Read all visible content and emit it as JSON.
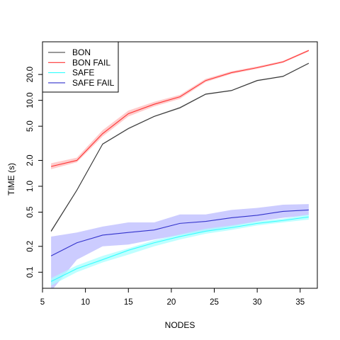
{
  "chart_data": {
    "type": "line",
    "xlabel": "NODES",
    "ylabel": "TIME (s)",
    "y_scale": "log",
    "xlim": [
      5,
      37
    ],
    "ylim": [
      0.065,
      48
    ],
    "x_ticks": [
      5,
      10,
      15,
      20,
      25,
      30,
      35
    ],
    "y_ticks": [
      0.1,
      0.2,
      0.5,
      1.0,
      2.0,
      5.0,
      10.0,
      20.0
    ],
    "y_tick_labels": [
      "0.1",
      "0.2",
      "0.5",
      "1.0",
      "2.0",
      "5.0",
      "10.0",
      "20.0"
    ],
    "x_tick_labels": [
      "5",
      "10",
      "15",
      "20",
      "25",
      "30",
      "35"
    ],
    "grid": false,
    "legend_position": "top-left",
    "x": [
      6,
      9,
      12,
      15,
      18,
      21,
      24,
      27,
      30,
      33,
      36
    ],
    "series": [
      {
        "name": "BON",
        "color": "#333333",
        "band_color": "#bbbbbb",
        "values": [
          0.3,
          0.9,
          3.1,
          4.7,
          6.5,
          8.2,
          11.8,
          13.0,
          17.0,
          19.0,
          27.0
        ],
        "lower": [
          0.29,
          0.88,
          3.05,
          4.6,
          6.4,
          8.0,
          11.6,
          12.8,
          16.7,
          18.7,
          26.5
        ],
        "upper": [
          0.31,
          0.92,
          3.15,
          4.8,
          6.6,
          8.4,
          12.0,
          13.2,
          17.3,
          19.3,
          27.5
        ]
      },
      {
        "name": "BON FAIL",
        "color": "#ff3333",
        "band_color": "#ffbbbb",
        "values": [
          1.7,
          2.0,
          4.1,
          7.0,
          9.0,
          11.0,
          17.0,
          21.0,
          24.0,
          28.0,
          38.0
        ],
        "lower": [
          1.58,
          1.9,
          3.8,
          6.5,
          8.5,
          10.4,
          16.3,
          20.3,
          23.3,
          27.3,
          37.0
        ],
        "upper": [
          1.85,
          2.15,
          4.5,
          7.6,
          9.6,
          11.6,
          17.8,
          21.8,
          24.8,
          28.8,
          39.0
        ]
      },
      {
        "name": "SAFE",
        "color": "#33ffff",
        "band_color": "#aaffff",
        "values": [
          0.078,
          0.11,
          0.14,
          0.18,
          0.22,
          0.26,
          0.3,
          0.33,
          0.37,
          0.4,
          0.44
        ],
        "lower": [
          0.07,
          0.1,
          0.13,
          0.16,
          0.2,
          0.24,
          0.28,
          0.31,
          0.35,
          0.38,
          0.41
        ],
        "upper": [
          0.085,
          0.12,
          0.155,
          0.19,
          0.235,
          0.275,
          0.32,
          0.35,
          0.39,
          0.42,
          0.47
        ]
      },
      {
        "name": "SAFE FAIL",
        "color": "#3333cc",
        "band_color": "#bbbbff",
        "values": [
          0.155,
          0.22,
          0.27,
          0.29,
          0.31,
          0.37,
          0.39,
          0.43,
          0.46,
          0.51,
          0.53
        ],
        "lower": [
          0.06,
          0.14,
          0.2,
          0.21,
          0.24,
          0.27,
          0.3,
          0.34,
          0.39,
          0.43,
          0.46
        ],
        "upper": [
          0.26,
          0.29,
          0.34,
          0.38,
          0.38,
          0.47,
          0.47,
          0.53,
          0.56,
          0.61,
          0.62
        ]
      }
    ]
  }
}
